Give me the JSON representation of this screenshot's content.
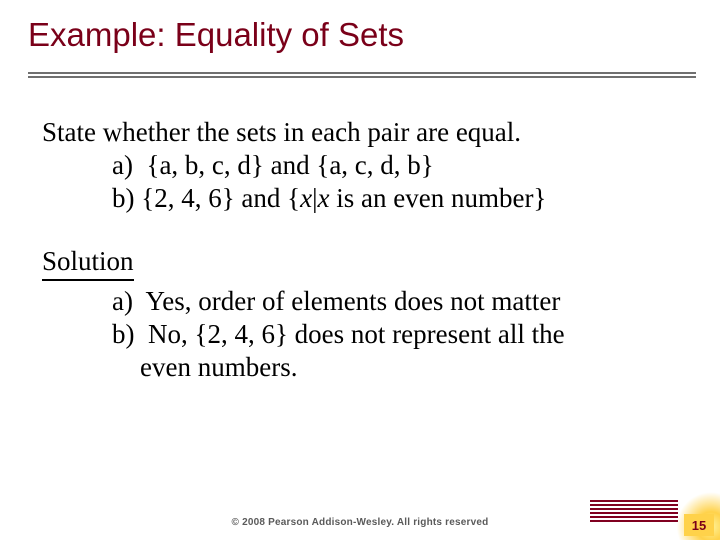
{
  "title": "Example: Equality of Sets",
  "problem": {
    "prompt": "State whether the sets in each pair are equal.",
    "items": [
      {
        "label": "a)",
        "text_pre": "{a, b, c, d} and {a, c, d, b}"
      },
      {
        "label": "b)",
        "text_pre": "{2, 4, 6} and {",
        "var1": "x",
        "mid": "|",
        "var2": "x",
        "text_post": " is an even number}"
      }
    ]
  },
  "solution": {
    "heading": "Solution",
    "answers": [
      {
        "label": "a)",
        "text": "Yes, order of elements does not matter"
      },
      {
        "label": "b)",
        "text_line1": "No, {2, 4, 6} does not represent all the",
        "text_line2": "even numbers."
      }
    ]
  },
  "footer": {
    "copyright": "© 2008 Pearson Addison-Wesley. All rights reserved"
  },
  "page_number": "15",
  "colors": {
    "title": "#7a0019",
    "rule": "#6f6f6f",
    "accent": "#800020",
    "badge_bg": "#ffd24a"
  }
}
